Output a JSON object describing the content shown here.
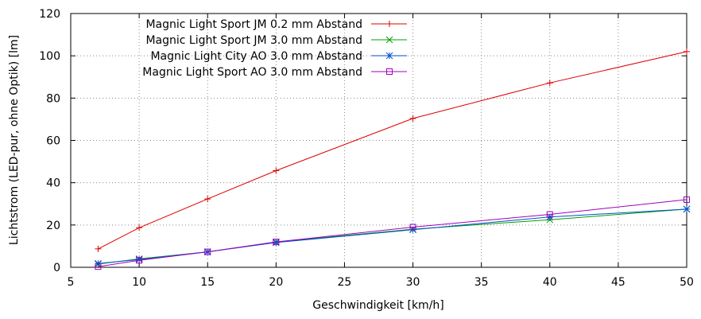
{
  "chart_data": {
    "type": "line",
    "xlabel": "Geschwindigkeit [km/h]",
    "ylabel": "Lichtstrom (LED-pur, ohne Optik) [lm]",
    "xlim": [
      5,
      50
    ],
    "ylim": [
      0,
      120
    ],
    "xticks": [
      5,
      10,
      15,
      20,
      25,
      30,
      35,
      40,
      45,
      50
    ],
    "yticks": [
      0,
      20,
      40,
      60,
      80,
      100,
      120
    ],
    "grid": true,
    "legend_position": "top-left",
    "series": [
      {
        "name": "Magnic Light Sport JM 0.2 mm Abstand",
        "color": "#dd0000",
        "marker": "plus",
        "x": [
          7,
          10,
          15,
          20,
          30,
          40,
          50
        ],
        "y": [
          8.7,
          18.7,
          32.3,
          45.7,
          70.4,
          87.2,
          102
        ]
      },
      {
        "name": "Magnic Light Sport JM 3.0 mm Abstand",
        "color": "#00a000",
        "marker": "cross",
        "x": [
          7,
          10,
          15,
          20,
          30,
          40,
          50
        ],
        "y": [
          1.5,
          4.0,
          7.3,
          12.0,
          18.0,
          22.5,
          27.5
        ]
      },
      {
        "name": "Magnic Light City AO 3.0 mm Abstand",
        "color": "#0050d0",
        "marker": "star",
        "x": [
          7,
          10,
          15,
          20,
          30,
          40,
          50
        ],
        "y": [
          1.8,
          3.7,
          7.3,
          11.7,
          17.8,
          23.8,
          27.5
        ]
      },
      {
        "name": "Magnic Light Sport AO 3.0 mm Abstand",
        "color": "#a000c0",
        "marker": "square",
        "x": [
          7,
          10,
          15,
          20,
          30,
          40,
          50
        ],
        "y": [
          0.3,
          3.3,
          7.3,
          12.0,
          19.0,
          25.0,
          32.0
        ]
      }
    ]
  }
}
